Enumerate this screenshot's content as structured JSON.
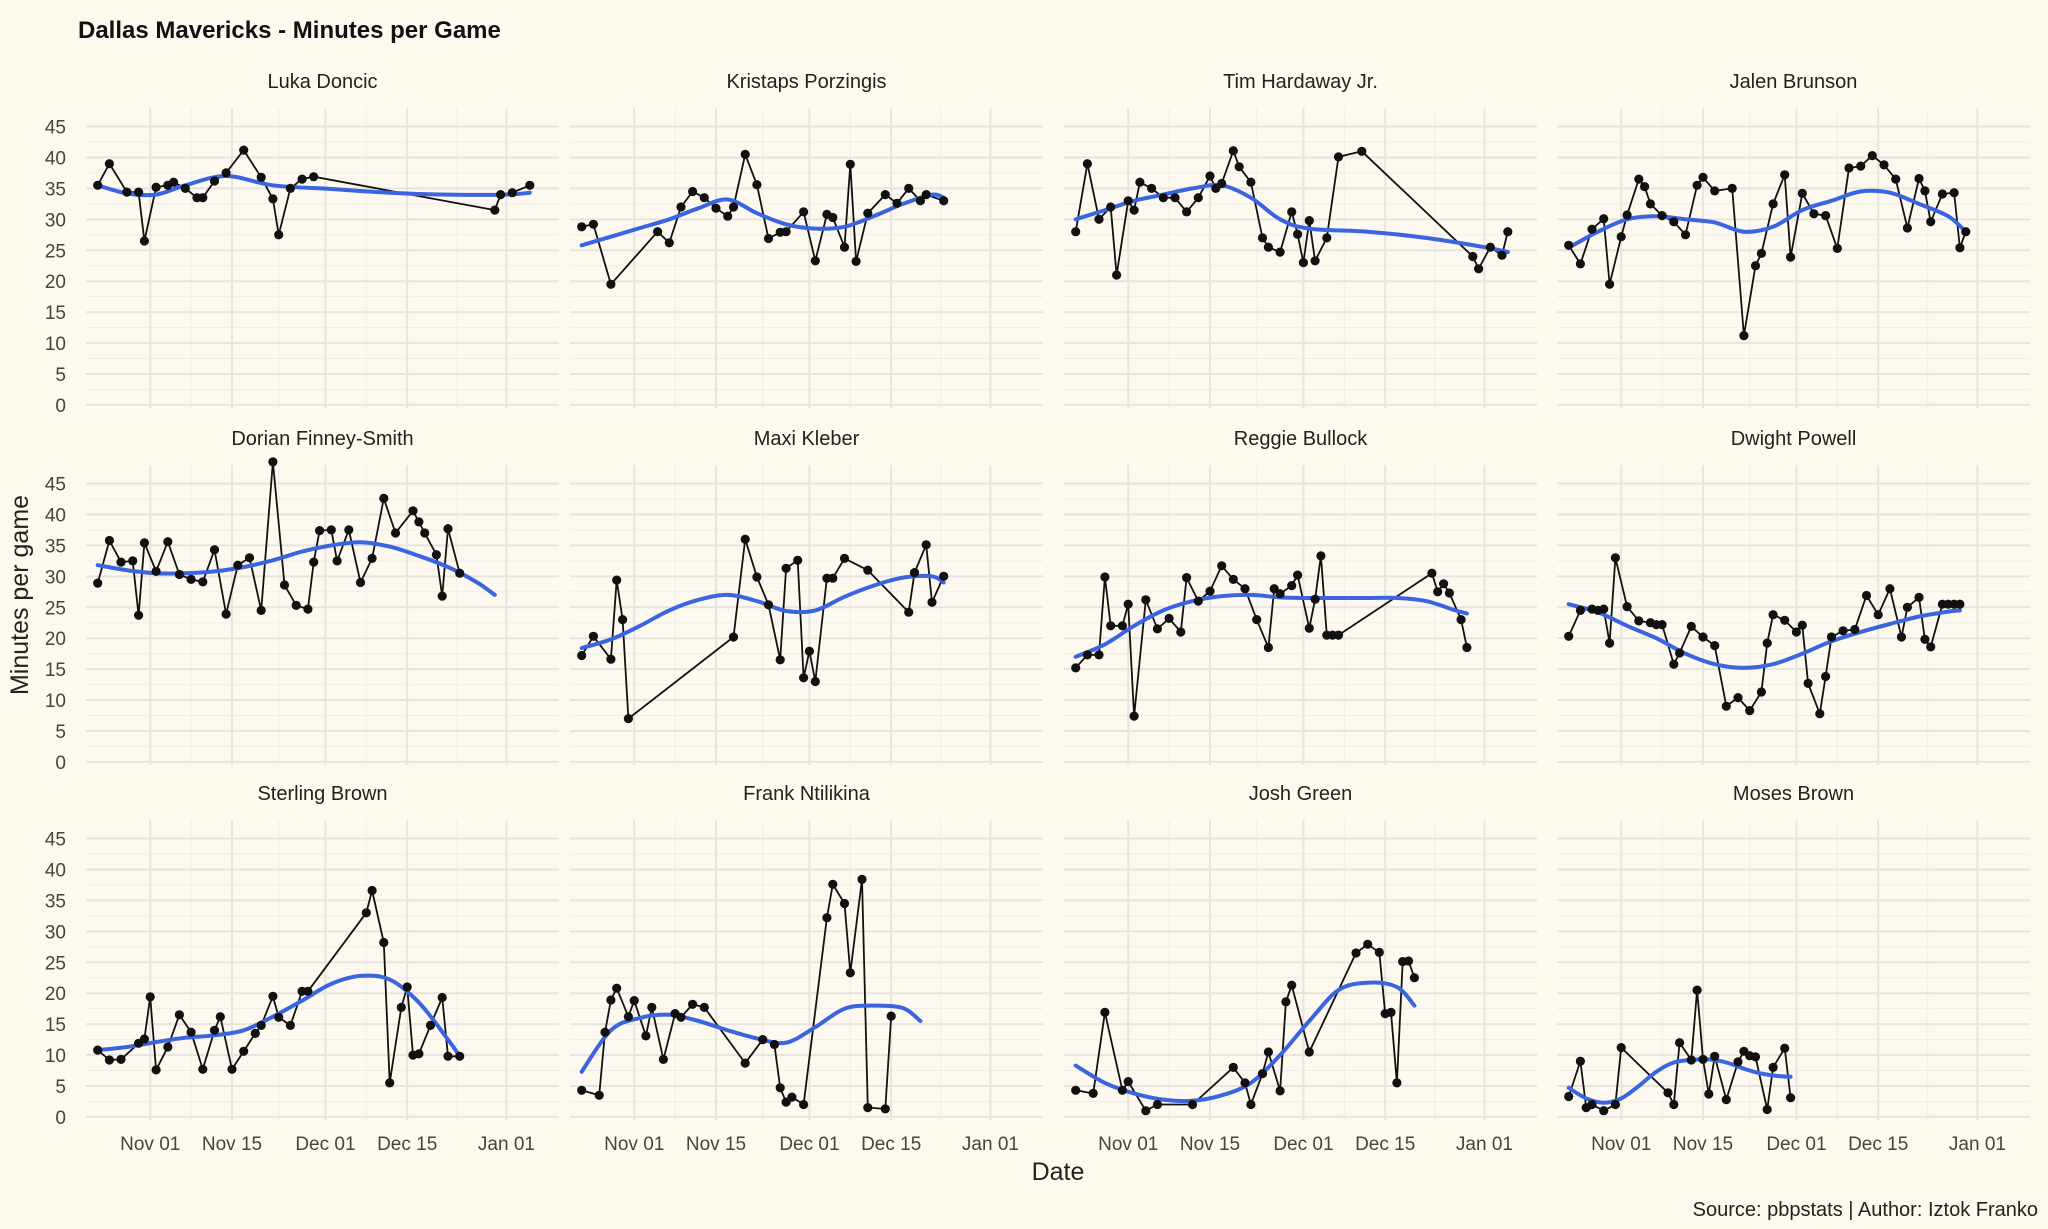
{
  "chart_data": {
    "type": "line",
    "title": "Dallas Mavericks  - Minutes per Game",
    "xlabel": "Date",
    "ylabel": "Minutes per game",
    "caption": "Source: pbpstats | Author: Iztok Franko",
    "colors": {
      "background": "#fdf9ee",
      "raw_line": "#111111",
      "smooth_line": "#3a64e0",
      "grid": "#e6e4e0"
    },
    "x_ticks": [
      {
        "label": "Nov 01",
        "day": 9
      },
      {
        "label": "Nov 15",
        "day": 23
      },
      {
        "label": "Dec 01",
        "day": 39
      },
      {
        "label": "Dec 15",
        "day": 53
      },
      {
        "label": "Jan 01",
        "day": 70
      }
    ],
    "x_origin_date": "Oct 23",
    "xlim": [
      -2,
      79
    ],
    "y_ticks": [
      0,
      5,
      10,
      15,
      20,
      25,
      30,
      35,
      40,
      45
    ],
    "ylim": [
      -0.5,
      48
    ],
    "series": [
      {
        "name": "Luka Doncic",
        "x": [
          0,
          2,
          5,
          7,
          8,
          10,
          12,
          13,
          15,
          17,
          18,
          20,
          22,
          25,
          28,
          30,
          31,
          33,
          35,
          37,
          68,
          69,
          71,
          74
        ],
        "y": [
          35.5,
          39,
          34.4,
          34.4,
          26.5,
          35.2,
          35.5,
          36,
          35,
          33.5,
          33.5,
          36.2,
          37.5,
          41.2,
          36.8,
          33.3,
          27.5,
          35,
          36.5,
          36.9,
          31.5,
          34,
          34.3,
          35.5
        ],
        "smooth_x": [
          0,
          5,
          10,
          15,
          22,
          30,
          40,
          50,
          60,
          70,
          74
        ],
        "smooth_y": [
          35.5,
          34.2,
          34,
          35.5,
          37,
          35.5,
          34.9,
          34.3,
          34,
          34,
          34.3
        ]
      },
      {
        "name": "Kristaps Porzingis",
        "x": [
          0,
          2,
          5,
          13,
          15,
          17,
          19,
          21,
          23,
          25,
          26,
          28,
          30,
          32,
          34,
          35,
          38,
          40,
          42,
          43,
          45,
          46,
          47,
          49,
          52,
          54,
          56,
          58,
          59,
          62
        ],
        "y": [
          28.8,
          29.2,
          19.5,
          28,
          26.2,
          32,
          34.5,
          33.5,
          31.8,
          30.5,
          32,
          40.5,
          35.6,
          26.9,
          27.9,
          28,
          31.2,
          23.3,
          30.8,
          30.3,
          25.5,
          38.9,
          23.2,
          31,
          34,
          32.6,
          35,
          33,
          34,
          33
        ],
        "smooth_x": [
          0,
          5,
          10,
          15,
          20,
          25,
          30,
          35,
          40,
          45,
          50,
          55,
          60,
          62
        ],
        "smooth_y": [
          25.8,
          27.2,
          28.6,
          30,
          31.8,
          33.2,
          31,
          29.2,
          28.5,
          28.8,
          30.5,
          32.5,
          34,
          33.5
        ]
      },
      {
        "name": "Tim Hardaway Jr.",
        "x": [
          0,
          2,
          4,
          6,
          7,
          9,
          10,
          11,
          13,
          15,
          17,
          19,
          21,
          23,
          24,
          25,
          27,
          28,
          30,
          32,
          33,
          35,
          37,
          38,
          39,
          40,
          41,
          43,
          45,
          49,
          68,
          69,
          71,
          73,
          74
        ],
        "y": [
          28,
          39,
          30,
          32,
          21,
          33,
          31.5,
          36,
          35,
          33.5,
          33.5,
          31.2,
          33.5,
          37,
          35,
          35.8,
          41.1,
          38.5,
          36,
          27,
          25.5,
          24.7,
          31.2,
          27.6,
          23,
          29.8,
          23.3,
          27,
          40.1,
          41,
          24,
          22,
          25.5,
          24.2,
          28
        ],
        "smooth_x": [
          0,
          5,
          10,
          15,
          20,
          25,
          30,
          35,
          40,
          50,
          60,
          70,
          74
        ],
        "smooth_y": [
          30,
          31.5,
          33,
          34,
          35,
          35.5,
          33.5,
          30,
          28.5,
          28,
          27,
          25.5,
          24.7
        ]
      },
      {
        "name": "Jalen Brunson",
        "x": [
          0,
          2,
          4,
          6,
          7,
          9,
          10,
          12,
          13,
          14,
          16,
          18,
          20,
          22,
          23,
          25,
          28,
          30,
          32,
          33,
          35,
          37,
          38,
          40,
          42,
          44,
          46,
          48,
          50,
          52,
          54,
          56,
          58,
          60,
          61,
          62,
          64,
          66,
          67,
          68
        ],
        "y": [
          25.8,
          22.8,
          28.4,
          30.1,
          19.5,
          27.2,
          30.7,
          36.5,
          35.3,
          32.5,
          30.6,
          29.6,
          27.5,
          35.5,
          36.8,
          34.6,
          35,
          11.2,
          22.5,
          24.5,
          32.5,
          37.2,
          23.9,
          34.2,
          30.9,
          30.6,
          25.3,
          38.3,
          38.6,
          40.3,
          38.8,
          36.5,
          28.6,
          36.6,
          34.6,
          29.6,
          34.1,
          34.3,
          25.4,
          28
        ],
        "smooth_x": [
          0,
          5,
          10,
          15,
          20,
          25,
          30,
          35,
          40,
          45,
          50,
          55,
          60,
          65,
          68
        ],
        "smooth_y": [
          25.4,
          28,
          30,
          30.5,
          30,
          29.5,
          28,
          28.8,
          31.5,
          33,
          34.5,
          34.3,
          32.5,
          30.5,
          28
        ]
      },
      {
        "name": "Dorian Finney-Smith",
        "x": [
          0,
          2,
          4,
          6,
          7,
          8,
          10,
          12,
          14,
          16,
          18,
          20,
          22,
          24,
          26,
          28,
          30,
          32,
          34,
          36,
          37,
          38,
          40,
          41,
          43,
          45,
          47,
          49,
          51,
          54,
          55,
          56,
          58,
          59,
          60,
          62
        ],
        "y": [
          28.9,
          35.8,
          32.3,
          32.5,
          23.7,
          35.4,
          30.8,
          35.6,
          30.3,
          29.5,
          29.1,
          34.3,
          23.9,
          31.8,
          33,
          24.5,
          48.5,
          28.6,
          25.3,
          24.7,
          32.3,
          37.4,
          37.5,
          32.5,
          37.5,
          29,
          32.9,
          42.6,
          37,
          40.6,
          38.8,
          37,
          33.5,
          26.8,
          37.7,
          30.5
        ],
        "smooth_x": [
          0,
          5,
          10,
          15,
          20,
          25,
          30,
          35,
          40,
          45,
          50,
          55,
          60,
          65,
          68
        ],
        "smooth_y": [
          31.8,
          31,
          30.5,
          30.5,
          30.8,
          31.5,
          32.6,
          34,
          35,
          35.5,
          34.8,
          33.3,
          31.5,
          29,
          27
        ]
      },
      {
        "name": "Maxi Kleber",
        "x": [
          0,
          2,
          5,
          6,
          7,
          8,
          26,
          28,
          30,
          32,
          34,
          35,
          37,
          38,
          39,
          40,
          42,
          43,
          45,
          49,
          56,
          57,
          59,
          60,
          62
        ],
        "y": [
          17.2,
          20.3,
          16.6,
          29.4,
          23,
          7,
          20.2,
          36,
          29.9,
          25.4,
          16.5,
          31.3,
          32.6,
          13.6,
          17.9,
          13,
          29.7,
          29.7,
          32.9,
          31,
          24.2,
          30.6,
          35.1,
          25.8,
          30
        ],
        "smooth_x": [
          0,
          5,
          10,
          15,
          20,
          25,
          30,
          35,
          40,
          45,
          50,
          55,
          60,
          62
        ],
        "smooth_y": [
          18.4,
          19.8,
          22,
          24.5,
          26.2,
          27,
          26,
          24.4,
          24.5,
          26.7,
          28.5,
          29.8,
          30,
          29
        ]
      },
      {
        "name": "Reggie Bullock",
        "x": [
          0,
          2,
          4,
          5,
          6,
          8,
          9,
          10,
          12,
          14,
          16,
          18,
          19,
          21,
          23,
          25,
          27,
          29,
          31,
          33,
          34,
          35,
          37,
          38,
          40,
          41,
          42,
          43,
          44,
          45,
          61,
          62,
          63,
          64,
          66,
          67
        ],
        "y": [
          15.2,
          17.3,
          17.3,
          29.9,
          22,
          22,
          25.5,
          7.4,
          26.2,
          21.5,
          23.2,
          21,
          29.8,
          26,
          27.6,
          31.7,
          29.5,
          28,
          23,
          18.5,
          28,
          27.2,
          28.5,
          30.2,
          21.6,
          26.3,
          33.3,
          20.5,
          20.5,
          20.5,
          30.5,
          27.5,
          28.8,
          27.3,
          23,
          18.5
        ],
        "smooth_x": [
          0,
          5,
          10,
          15,
          20,
          25,
          30,
          35,
          40,
          45,
          50,
          55,
          60,
          65,
          67
        ],
        "smooth_y": [
          17,
          19,
          22,
          24.5,
          26,
          26.8,
          27,
          26.6,
          26.5,
          26.5,
          26.5,
          26.5,
          26,
          24.5,
          24
        ]
      },
      {
        "name": "Dwight Powell",
        "x": [
          0,
          2,
          4,
          5,
          6,
          7,
          8,
          10,
          12,
          14,
          15,
          16,
          18,
          19,
          21,
          23,
          25,
          27,
          29,
          31,
          33,
          34,
          35,
          37,
          39,
          40,
          41,
          43,
          44,
          45,
          47,
          49,
          51,
          53,
          55,
          57,
          58,
          60,
          61,
          62,
          64,
          65,
          66,
          67
        ],
        "y": [
          20.3,
          24.5,
          24.7,
          24.5,
          24.7,
          19.2,
          33,
          25.1,
          22.8,
          22.5,
          22.2,
          22.2,
          15.8,
          17.6,
          21.9,
          20.2,
          18.8,
          9,
          10.4,
          8.3,
          11.3,
          19.2,
          23.8,
          22.9,
          21,
          22.1,
          12.7,
          7.8,
          13.8,
          20.2,
          21.2,
          21.4,
          26.9,
          23.8,
          28,
          20.2,
          25,
          26.6,
          19.8,
          18.6,
          25.5,
          25.5,
          25.5,
          25.5
        ],
        "smooth_x": [
          0,
          5,
          10,
          15,
          20,
          25,
          30,
          35,
          40,
          45,
          50,
          55,
          60,
          65,
          67
        ],
        "smooth_y": [
          25.5,
          24.2,
          22,
          20,
          17.5,
          15.8,
          15.2,
          15.8,
          17.5,
          19.5,
          21,
          22.3,
          23.5,
          24.3,
          24.5
        ]
      },
      {
        "name": "Sterling Brown",
        "x": [
          0,
          2,
          4,
          7,
          8,
          9,
          10,
          12,
          14,
          16,
          18,
          20,
          21,
          23,
          25,
          27,
          28,
          30,
          31,
          33,
          35,
          36,
          46,
          47,
          49,
          50,
          52,
          53,
          54,
          55,
          57,
          59,
          60,
          62
        ],
        "y": [
          10.8,
          9.2,
          9.3,
          11.9,
          12.6,
          19.4,
          7.6,
          11.3,
          16.5,
          13.7,
          7.7,
          14,
          16.2,
          7.7,
          10.6,
          13.5,
          14.8,
          19.5,
          16.1,
          14.8,
          20.3,
          20.3,
          33,
          36.6,
          28.2,
          5.5,
          17.7,
          21,
          10,
          10.2,
          14.8,
          19.3,
          9.8,
          9.8
        ],
        "smooth_x": [
          0,
          5,
          10,
          15,
          20,
          25,
          30,
          35,
          40,
          45,
          50,
          55,
          60,
          62
        ],
        "smooth_y": [
          10.8,
          11.3,
          12.1,
          12.8,
          13.2,
          14,
          16.2,
          18.8,
          21.5,
          22.8,
          22.2,
          18.5,
          12.5,
          9.8
        ]
      },
      {
        "name": "Frank Ntilikina",
        "x": [
          0,
          3,
          4,
          5,
          6,
          8,
          9,
          11,
          12,
          14,
          16,
          17,
          19,
          21,
          28,
          31,
          33,
          34,
          35,
          36,
          38,
          42,
          43,
          45,
          46,
          48,
          49,
          52,
          53
        ],
        "y": [
          4.3,
          3.5,
          13.7,
          18.9,
          20.8,
          16.2,
          18.8,
          13.1,
          17.7,
          9.3,
          16.7,
          16.1,
          18.2,
          17.7,
          8.7,
          12.5,
          11.7,
          4.7,
          2.4,
          3.2,
          2,
          32.2,
          37.6,
          34.5,
          23.3,
          38.4,
          1.5,
          1.3,
          16.3
        ],
        "smooth_x": [
          0,
          5,
          10,
          15,
          20,
          25,
          30,
          35,
          40,
          45,
          50,
          55,
          58
        ],
        "smooth_y": [
          7.3,
          14,
          16,
          16.5,
          15.5,
          14,
          12.7,
          12,
          14.5,
          17.5,
          18,
          17.6,
          15.5
        ]
      },
      {
        "name": "Josh Green",
        "x": [
          0,
          3,
          5,
          8,
          9,
          12,
          14,
          20,
          27,
          29,
          30,
          32,
          33,
          35,
          36,
          37,
          40,
          48,
          50,
          52,
          53,
          54,
          55,
          56,
          57,
          58
        ],
        "y": [
          4.3,
          3.8,
          16.9,
          4.3,
          5.7,
          1,
          2,
          2,
          8,
          5.5,
          2,
          7,
          10.5,
          4.2,
          18.6,
          21.3,
          10.5,
          26.5,
          27.9,
          26.6,
          16.7,
          16.9,
          5.5,
          25.1,
          25.2,
          22.5
        ],
        "smooth_x": [
          0,
          5,
          10,
          15,
          20,
          25,
          30,
          35,
          40,
          45,
          50,
          55,
          58
        ],
        "smooth_y": [
          8.3,
          5.5,
          3.8,
          2.8,
          2.6,
          3.5,
          5.5,
          10,
          15.5,
          20.5,
          21.7,
          21,
          18
        ]
      },
      {
        "name": "Moses Brown",
        "x": [
          0,
          2,
          3,
          4,
          6,
          8,
          9,
          17,
          18,
          19,
          21,
          22,
          23,
          24,
          25,
          27,
          29,
          30,
          31,
          32,
          34,
          35,
          37,
          38
        ],
        "y": [
          3.3,
          9,
          1.5,
          2,
          1,
          2,
          11.2,
          3.9,
          2,
          12,
          9.2,
          20.5,
          9.3,
          3.7,
          9.8,
          2.8,
          8.9,
          10.6,
          9.9,
          9.7,
          1.2,
          8,
          11.1,
          3.1
        ],
        "smooth_x": [
          0,
          3,
          6,
          9,
          12,
          15,
          18,
          21,
          24,
          27,
          30,
          33,
          36,
          38
        ],
        "smooth_y": [
          4.7,
          3,
          2.3,
          3,
          5,
          7.3,
          8.8,
          9.2,
          9.3,
          8.8,
          7.8,
          7,
          6.6,
          6.5
        ]
      }
    ]
  }
}
